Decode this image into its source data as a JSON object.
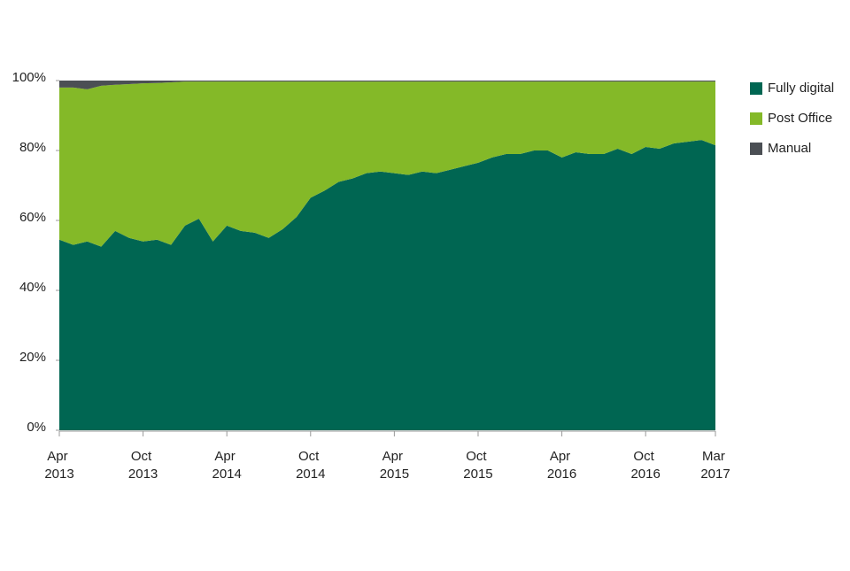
{
  "chart_data": {
    "type": "stacked_area",
    "categories": [
      "Apr 2013",
      null,
      null,
      null,
      null,
      null,
      "Oct 2013",
      null,
      null,
      null,
      null,
      null,
      "Apr 2014",
      null,
      null,
      null,
      null,
      null,
      "Oct 2014",
      null,
      null,
      null,
      null,
      null,
      "Apr 2015",
      null,
      null,
      null,
      null,
      null,
      "Oct 2015",
      null,
      null,
      null,
      null,
      null,
      "Apr 2016",
      null,
      null,
      null,
      null,
      null,
      "Oct 2016",
      null,
      null,
      null,
      null,
      "Mar 2017"
    ],
    "series": [
      {
        "name": "Fully digital",
        "color": "#006652",
        "values": [
          54.5,
          53,
          54,
          52.5,
          57,
          55,
          54,
          54.5,
          53,
          58.5,
          60.5,
          54,
          58.5,
          57,
          56.5,
          55,
          57.5,
          61,
          66.5,
          68.5,
          71,
          72,
          73.5,
          74,
          73.5,
          73,
          74,
          73.5,
          74.5,
          75.5,
          76.5,
          78,
          79,
          79,
          80,
          80,
          78,
          79.5,
          79,
          79,
          80.5,
          79,
          81,
          80.5,
          82,
          82.5,
          83,
          81.5
        ]
      },
      {
        "name": "Post Office",
        "color": "#84b928",
        "values": [
          43.5,
          45,
          43.5,
          46,
          41.8,
          44,
          45.2,
          44.8,
          46.5,
          41.2,
          39.2,
          45.7,
          41.2,
          42.7,
          43.2,
          44.7,
          42.2,
          38.7,
          33.2,
          31.2,
          28.7,
          27.7,
          26.2,
          25.7,
          26.2,
          26.7,
          25.7,
          26.2,
          25.2,
          24.2,
          23.2,
          21.7,
          20.7,
          20.7,
          19.7,
          19.7,
          21.7,
          20.2,
          20.7,
          20.7,
          19.2,
          20.7,
          18.7,
          19.2,
          17.7,
          17.2,
          16.7,
          18.2
        ]
      },
      {
        "name": "Manual",
        "color": "#4b4f54",
        "values": [
          2,
          2,
          2.5,
          1.5,
          1.2,
          1,
          0.8,
          0.7,
          0.5,
          0.3,
          0.3,
          0.3,
          0.3,
          0.3,
          0.3,
          0.3,
          0.3,
          0.3,
          0.3,
          0.3,
          0.3,
          0.3,
          0.3,
          0.3,
          0.3,
          0.3,
          0.3,
          0.3,
          0.3,
          0.3,
          0.3,
          0.3,
          0.3,
          0.3,
          0.3,
          0.3,
          0.3,
          0.3,
          0.3,
          0.3,
          0.3,
          0.3,
          0.3,
          0.3,
          0.3,
          0.3,
          0.3,
          0.3
        ]
      }
    ],
    "ylim": [
      0,
      100
    ],
    "yticks": [
      {
        "value": 0,
        "label": "0%"
      },
      {
        "value": 20,
        "label": "20%"
      },
      {
        "value": 40,
        "label": "40%"
      },
      {
        "value": 60,
        "label": "60%"
      },
      {
        "value": 80,
        "label": "80%"
      },
      {
        "value": 100,
        "label": "100%"
      }
    ],
    "legend": "right"
  }
}
